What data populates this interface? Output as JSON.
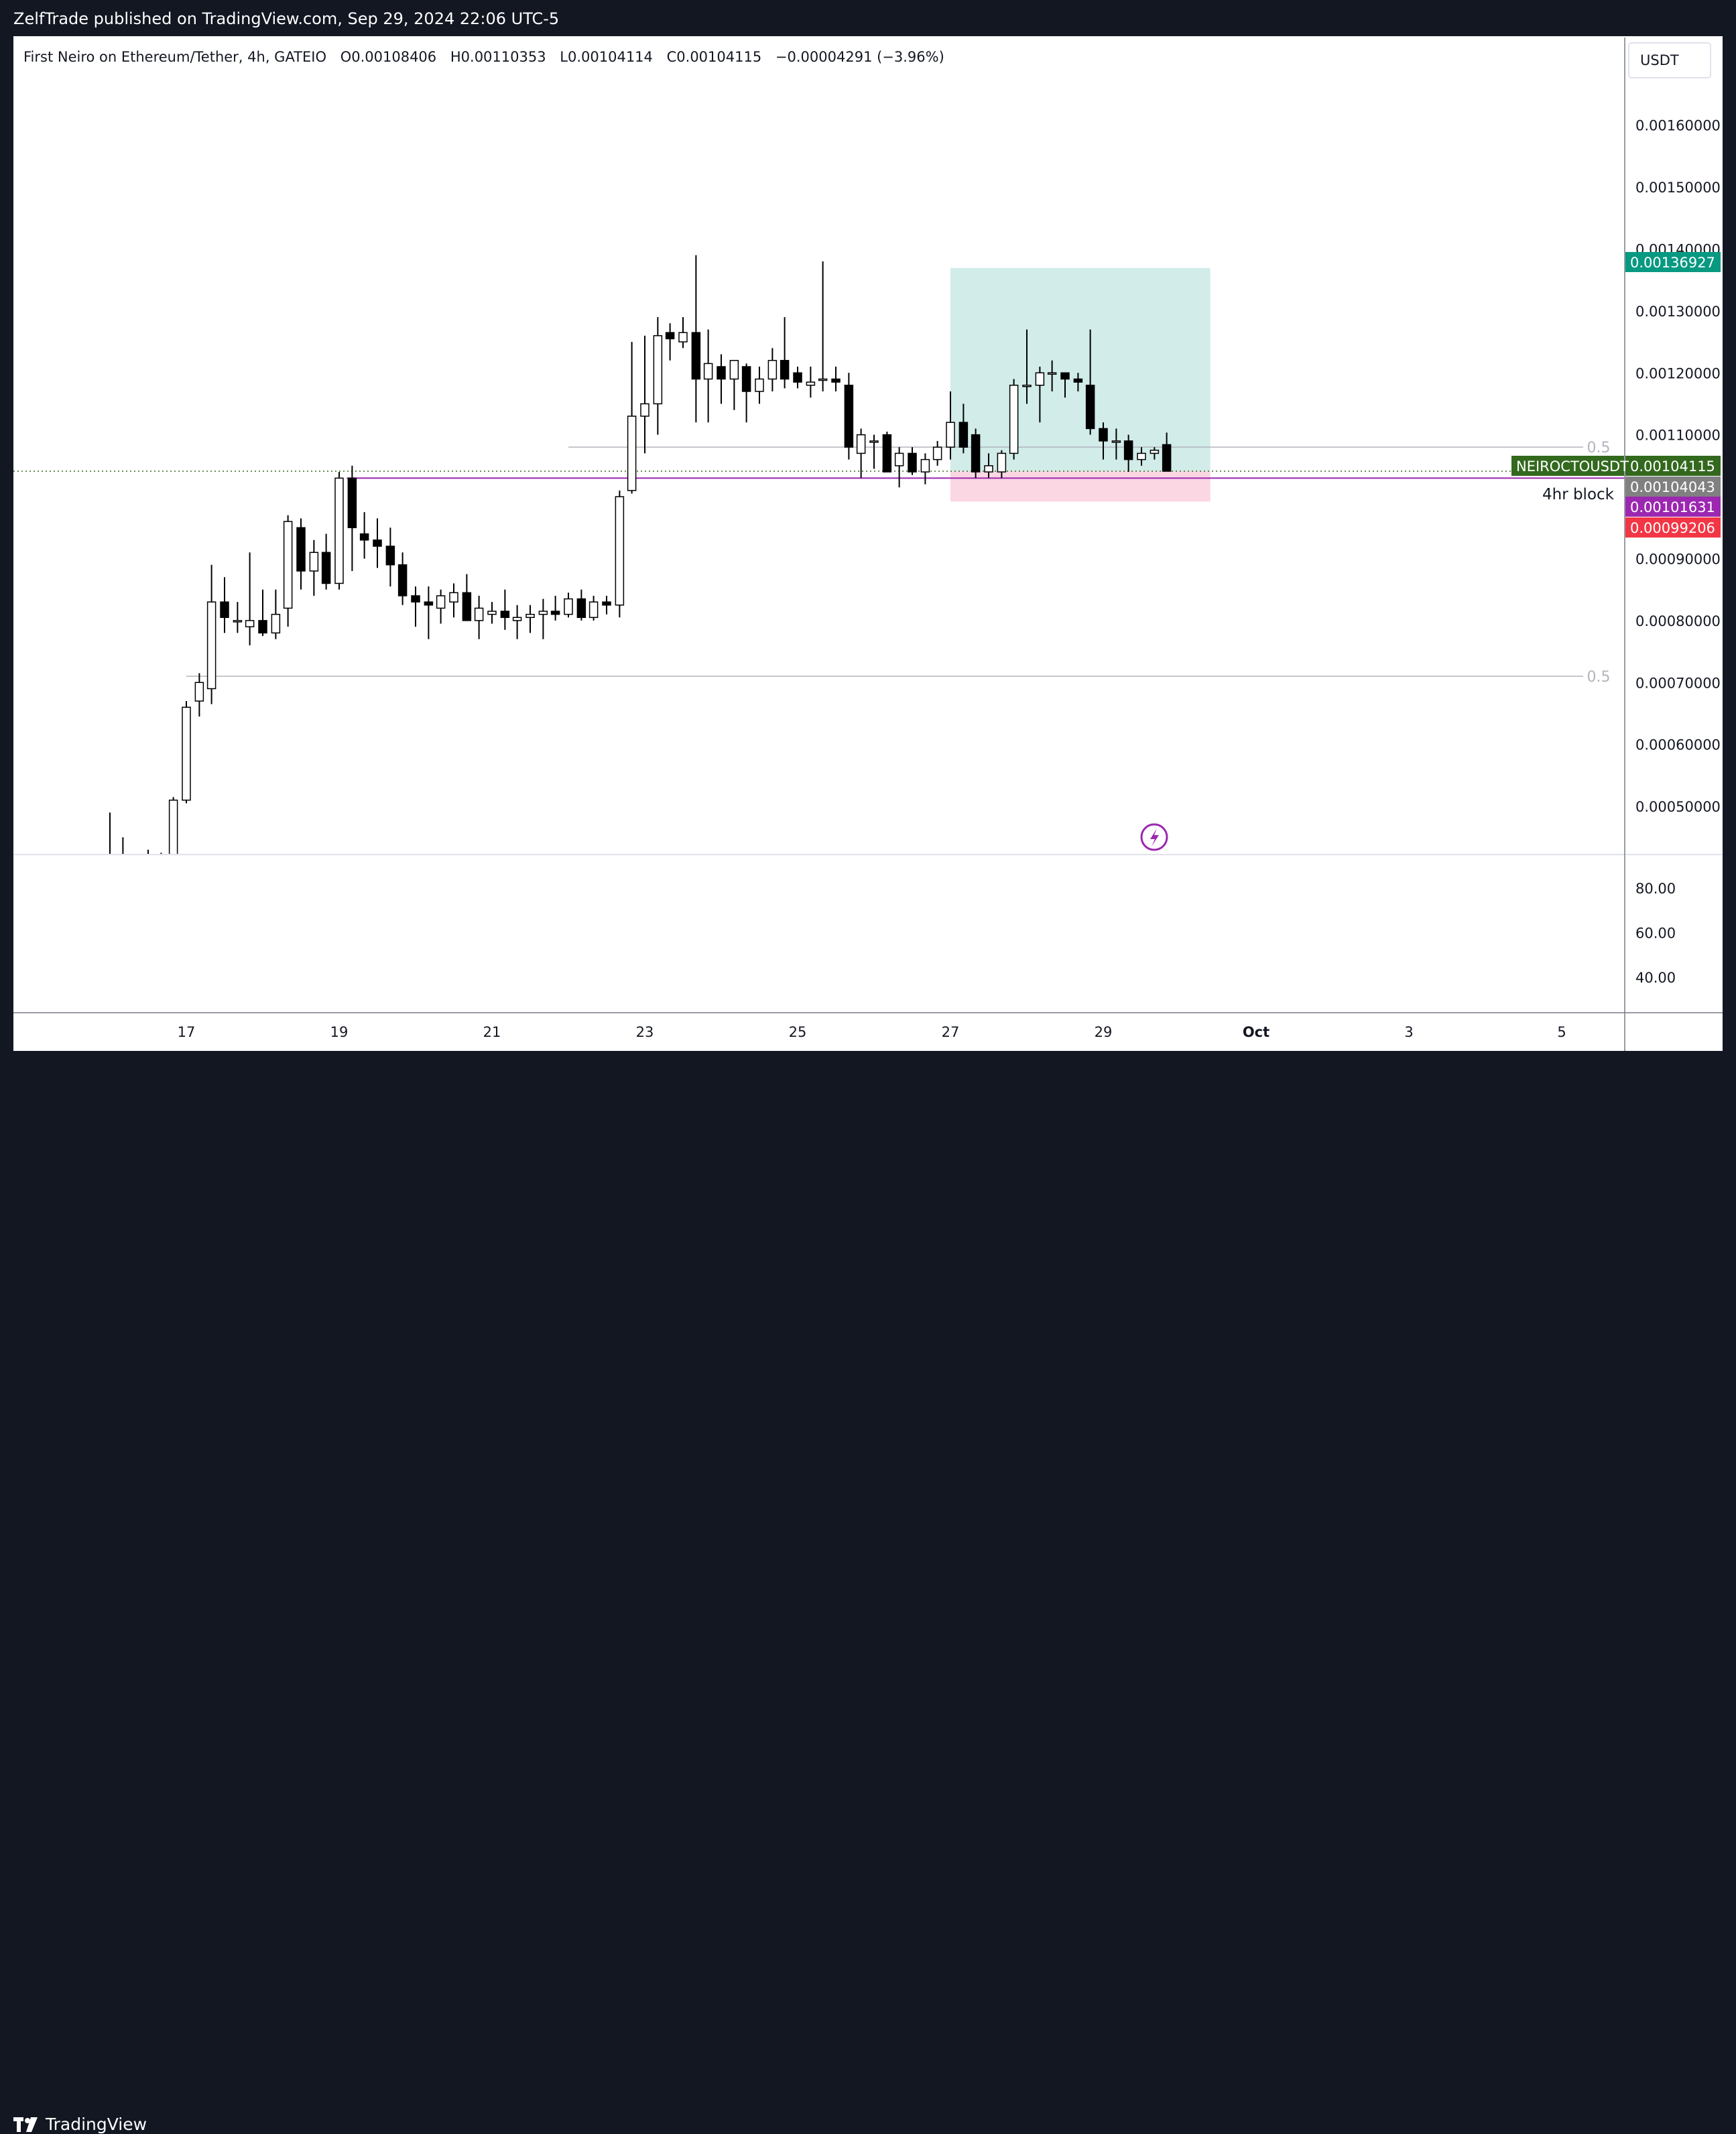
{
  "header": {
    "publish_line": "ZelfTrade published on TradingView.com, Sep 29, 2024 22:06 UTC-5"
  },
  "legend": {
    "symbol_desc": "First Neiro on Ethereum/Tether, 4h, GATEIO",
    "open_label": "O",
    "open_value": "0.00108406",
    "high_label": "H",
    "high_value": "0.00110353",
    "low_label": "L",
    "low_value": "0.00104114",
    "close_label": "C",
    "close_value": "0.00104115",
    "change": "−0.00004291 (−3.96%)"
  },
  "currency_button": "USDT",
  "footer": {
    "brand": "TradingView"
  },
  "colors": {
    "bull_body": "#ffffff",
    "bear_body": "#000000",
    "wick": "#000000",
    "target_zone": "#b2dfdb",
    "stop_zone": "#f8bbd0",
    "take_profit_tag": "#089981",
    "last_price_tag": "#33691e",
    "avwap_tag": "#808080",
    "purple_tag": "#9c27b0",
    "stop_tag": "#f23645"
  },
  "chart_data": {
    "type": "candlestick",
    "timeframe": "4h",
    "x_ticks": [
      "17",
      "19",
      "21",
      "23",
      "25",
      "27",
      "29",
      "Oct",
      "3",
      "5"
    ],
    "y_ticks": [
      "0.00050000",
      "0.00060000",
      "0.00070000",
      "0.00080000",
      "0.00090000",
      "0.00110000",
      "0.00120000",
      "0.00130000",
      "0.00140000",
      "0.00150000",
      "0.00160000"
    ],
    "y_range": [
      0.00042,
      0.00168
    ],
    "x_range_days": [
      14.3,
      35.4
    ],
    "candles": [
      {
        "t": 16.0,
        "o": 0.00042,
        "h": 0.00049,
        "l": 0.00038,
        "c": 0.0004
      },
      {
        "t": 16.17,
        "o": 0.00041,
        "h": 0.00045,
        "l": 0.00038,
        "c": 0.00042
      },
      {
        "t": 16.5,
        "o": 0.00041,
        "h": 0.00043,
        "l": 0.00039,
        "c": 0.00042
      },
      {
        "t": 16.67,
        "o": 0.00042,
        "h": 0.000425,
        "l": 0.0004,
        "c": 0.00042
      },
      {
        "t": 16.83,
        "o": 0.0004,
        "h": 0.000515,
        "l": 0.00039,
        "c": 0.00051
      },
      {
        "t": 17.0,
        "o": 0.00051,
        "h": 0.00067,
        "l": 0.000505,
        "c": 0.00066
      },
      {
        "t": 17.17,
        "o": 0.00067,
        "h": 0.000715,
        "l": 0.000645,
        "c": 0.0007
      },
      {
        "t": 17.33,
        "o": 0.00069,
        "h": 0.00089,
        "l": 0.000665,
        "c": 0.00083
      },
      {
        "t": 17.5,
        "o": 0.00083,
        "h": 0.00087,
        "l": 0.00078,
        "c": 0.000805
      },
      {
        "t": 17.67,
        "o": 0.0008,
        "h": 0.00083,
        "l": 0.00078,
        "c": 0.0008
      },
      {
        "t": 17.83,
        "o": 0.00079,
        "h": 0.00091,
        "l": 0.00076,
        "c": 0.0008
      },
      {
        "t": 18.0,
        "o": 0.0008,
        "h": 0.00085,
        "l": 0.000775,
        "c": 0.00078
      },
      {
        "t": 18.17,
        "o": 0.00078,
        "h": 0.00085,
        "l": 0.00077,
        "c": 0.00081
      },
      {
        "t": 18.33,
        "o": 0.00082,
        "h": 0.00097,
        "l": 0.00079,
        "c": 0.00096
      },
      {
        "t": 18.5,
        "o": 0.00095,
        "h": 0.000965,
        "l": 0.00085,
        "c": 0.00088
      },
      {
        "t": 18.67,
        "o": 0.00088,
        "h": 0.00093,
        "l": 0.00084,
        "c": 0.00091
      },
      {
        "t": 18.83,
        "o": 0.00091,
        "h": 0.00094,
        "l": 0.00085,
        "c": 0.00086
      },
      {
        "t": 19.0,
        "o": 0.00086,
        "h": 0.00104,
        "l": 0.00085,
        "c": 0.00103
      },
      {
        "t": 19.17,
        "o": 0.00103,
        "h": 0.00105,
        "l": 0.00088,
        "c": 0.00095
      },
      {
        "t": 19.33,
        "o": 0.00094,
        "h": 0.000975,
        "l": 0.0009,
        "c": 0.00093
      },
      {
        "t": 19.5,
        "o": 0.00093,
        "h": 0.000965,
        "l": 0.000885,
        "c": 0.00092
      },
      {
        "t": 19.67,
        "o": 0.00092,
        "h": 0.00095,
        "l": 0.000855,
        "c": 0.00089
      },
      {
        "t": 19.83,
        "o": 0.00089,
        "h": 0.00091,
        "l": 0.000825,
        "c": 0.00084
      },
      {
        "t": 20.0,
        "o": 0.00084,
        "h": 0.000855,
        "l": 0.00079,
        "c": 0.00083
      },
      {
        "t": 20.17,
        "o": 0.00083,
        "h": 0.000855,
        "l": 0.00077,
        "c": 0.000825
      },
      {
        "t": 20.33,
        "o": 0.00082,
        "h": 0.00085,
        "l": 0.000795,
        "c": 0.00084
      },
      {
        "t": 20.5,
        "o": 0.00083,
        "h": 0.00086,
        "l": 0.000805,
        "c": 0.000845
      },
      {
        "t": 20.67,
        "o": 0.000845,
        "h": 0.000875,
        "l": 0.0008,
        "c": 0.0008
      },
      {
        "t": 20.83,
        "o": 0.0008,
        "h": 0.00084,
        "l": 0.00077,
        "c": 0.00082
      },
      {
        "t": 21.0,
        "o": 0.00081,
        "h": 0.00083,
        "l": 0.000795,
        "c": 0.000815
      },
      {
        "t": 21.17,
        "o": 0.000815,
        "h": 0.00085,
        "l": 0.000785,
        "c": 0.000805
      },
      {
        "t": 21.33,
        "o": 0.0008,
        "h": 0.000825,
        "l": 0.00077,
        "c": 0.000805
      },
      {
        "t": 21.5,
        "o": 0.000805,
        "h": 0.000825,
        "l": 0.00078,
        "c": 0.00081
      },
      {
        "t": 21.67,
        "o": 0.00081,
        "h": 0.000835,
        "l": 0.00077,
        "c": 0.000815
      },
      {
        "t": 21.83,
        "o": 0.000815,
        "h": 0.00084,
        "l": 0.0008,
        "c": 0.00081
      },
      {
        "t": 22.0,
        "o": 0.00081,
        "h": 0.000845,
        "l": 0.000805,
        "c": 0.000835
      },
      {
        "t": 22.17,
        "o": 0.000835,
        "h": 0.00085,
        "l": 0.0008,
        "c": 0.000805
      },
      {
        "t": 22.33,
        "o": 0.000805,
        "h": 0.00084,
        "l": 0.0008,
        "c": 0.00083
      },
      {
        "t": 22.5,
        "o": 0.00083,
        "h": 0.00084,
        "l": 0.00081,
        "c": 0.000825
      },
      {
        "t": 22.67,
        "o": 0.000825,
        "h": 0.00101,
        "l": 0.000805,
        "c": 0.001
      },
      {
        "t": 22.83,
        "o": 0.00101,
        "h": 0.00125,
        "l": 0.001005,
        "c": 0.00113
      },
      {
        "t": 23.0,
        "o": 0.00113,
        "h": 0.00126,
        "l": 0.00107,
        "c": 0.00115
      },
      {
        "t": 23.17,
        "o": 0.00115,
        "h": 0.00129,
        "l": 0.0011,
        "c": 0.00126
      },
      {
        "t": 23.33,
        "o": 0.001265,
        "h": 0.00128,
        "l": 0.00122,
        "c": 0.001255
      },
      {
        "t": 23.5,
        "o": 0.00125,
        "h": 0.00129,
        "l": 0.00124,
        "c": 0.001265
      },
      {
        "t": 23.67,
        "o": 0.001265,
        "h": 0.00139,
        "l": 0.00112,
        "c": 0.00119
      },
      {
        "t": 23.83,
        "o": 0.00119,
        "h": 0.00127,
        "l": 0.00112,
        "c": 0.001215
      },
      {
        "t": 24.0,
        "o": 0.00121,
        "h": 0.00123,
        "l": 0.00115,
        "c": 0.00119
      },
      {
        "t": 24.17,
        "o": 0.00119,
        "h": 0.00122,
        "l": 0.00114,
        "c": 0.00122
      },
      {
        "t": 24.33,
        "o": 0.00121,
        "h": 0.001215,
        "l": 0.00112,
        "c": 0.00117
      },
      {
        "t": 24.5,
        "o": 0.00117,
        "h": 0.00121,
        "l": 0.00115,
        "c": 0.00119
      },
      {
        "t": 24.67,
        "o": 0.00119,
        "h": 0.00124,
        "l": 0.00117,
        "c": 0.00122
      },
      {
        "t": 24.83,
        "o": 0.00122,
        "h": 0.00129,
        "l": 0.001175,
        "c": 0.00119
      },
      {
        "t": 25.0,
        "o": 0.0012,
        "h": 0.00121,
        "l": 0.001175,
        "c": 0.001185
      },
      {
        "t": 25.17,
        "o": 0.00118,
        "h": 0.00121,
        "l": 0.00116,
        "c": 0.001185
      },
      {
        "t": 25.33,
        "o": 0.00119,
        "h": 0.00138,
        "l": 0.00117,
        "c": 0.00119
      },
      {
        "t": 25.5,
        "o": 0.00119,
        "h": 0.00121,
        "l": 0.00117,
        "c": 0.001185
      },
      {
        "t": 25.67,
        "o": 0.00118,
        "h": 0.0012,
        "l": 0.00106,
        "c": 0.00108
      },
      {
        "t": 25.83,
        "o": 0.00107,
        "h": 0.00111,
        "l": 0.00103,
        "c": 0.0011
      },
      {
        "t": 26.0,
        "o": 0.00109,
        "h": 0.0011,
        "l": 0.001045,
        "c": 0.00109
      },
      {
        "t": 26.17,
        "o": 0.0011,
        "h": 0.001105,
        "l": 0.00104,
        "c": 0.00104
      },
      {
        "t": 26.33,
        "o": 0.00105,
        "h": 0.00108,
        "l": 0.001015,
        "c": 0.00107
      },
      {
        "t": 26.5,
        "o": 0.00107,
        "h": 0.00108,
        "l": 0.001035,
        "c": 0.00104
      },
      {
        "t": 26.67,
        "o": 0.00104,
        "h": 0.00107,
        "l": 0.00102,
        "c": 0.00106
      },
      {
        "t": 26.83,
        "o": 0.00106,
        "h": 0.00109,
        "l": 0.00105,
        "c": 0.00108
      },
      {
        "t": 27.0,
        "o": 0.00108,
        "h": 0.00117,
        "l": 0.00106,
        "c": 0.00112
      },
      {
        "t": 27.17,
        "o": 0.00112,
        "h": 0.00115,
        "l": 0.00107,
        "c": 0.00108
      },
      {
        "t": 27.33,
        "o": 0.0011,
        "h": 0.00111,
        "l": 0.00103,
        "c": 0.00104
      },
      {
        "t": 27.5,
        "o": 0.00104,
        "h": 0.00107,
        "l": 0.00103,
        "c": 0.00105
      },
      {
        "t": 27.67,
        "o": 0.00104,
        "h": 0.001075,
        "l": 0.00103,
        "c": 0.00107
      },
      {
        "t": 27.83,
        "o": 0.00107,
        "h": 0.00119,
        "l": 0.00106,
        "c": 0.00118
      },
      {
        "t": 28.0,
        "o": 0.00118,
        "h": 0.00127,
        "l": 0.00115,
        "c": 0.00118
      },
      {
        "t": 28.17,
        "o": 0.00118,
        "h": 0.00121,
        "l": 0.00112,
        "c": 0.0012
      },
      {
        "t": 28.33,
        "o": 0.0012,
        "h": 0.00122,
        "l": 0.00117,
        "c": 0.0012
      },
      {
        "t": 28.5,
        "o": 0.0012,
        "h": 0.0012,
        "l": 0.00116,
        "c": 0.00119
      },
      {
        "t": 28.67,
        "o": 0.00119,
        "h": 0.0012,
        "l": 0.00117,
        "c": 0.001185
      },
      {
        "t": 28.83,
        "o": 0.00118,
        "h": 0.00127,
        "l": 0.0011,
        "c": 0.00111
      },
      {
        "t": 29.0,
        "o": 0.00111,
        "h": 0.00112,
        "l": 0.00106,
        "c": 0.00109
      },
      {
        "t": 29.17,
        "o": 0.00109,
        "h": 0.00111,
        "l": 0.00106,
        "c": 0.00109
      },
      {
        "t": 29.33,
        "o": 0.00109,
        "h": 0.0011,
        "l": 0.00104,
        "c": 0.00106
      },
      {
        "t": 29.5,
        "o": 0.00106,
        "h": 0.00108,
        "l": 0.00105,
        "c": 0.00107
      },
      {
        "t": 29.67,
        "o": 0.00107,
        "h": 0.00108,
        "l": 0.00106,
        "c": 0.001075
      },
      {
        "t": 29.83,
        "o": 0.00108406,
        "h": 0.00110353,
        "l": 0.00104114,
        "c": 0.00104115
      }
    ],
    "horizontal_lines": [
      {
        "label": "0.5",
        "price": 0.00108,
        "from_day": 22.0,
        "color": "#b2b5be"
      },
      {
        "label": "0.5",
        "price": 0.00071,
        "from_day": 17.0,
        "color": "#b2b5be"
      },
      {
        "label": "",
        "price": 0.00103,
        "from_day": 19.1,
        "color": "#9c27b0"
      }
    ],
    "long_position": {
      "from_day": 27.0,
      "to_day": 30.4,
      "take_profit": 0.00136927,
      "entry": 0.00104115,
      "stop": 0.00099206
    },
    "zone_label": "4hr block",
    "price_tags": [
      {
        "value": "0.00136927",
        "kind": "take_profit",
        "price": 0.00136927
      },
      {
        "value": "0.00104115",
        "kind": "last_price",
        "price": 0.00104115,
        "symbol": "NEIROCTOUSDT"
      },
      {
        "value": "0.00104043",
        "kind": "avwap",
        "price": 0.00103
      },
      {
        "value": "0.00101631",
        "kind": "purple",
        "price": 0.001
      },
      {
        "value": "0.00099206",
        "kind": "stop",
        "price": 0.00099206
      }
    ],
    "oscillator": {
      "y_ticks": [
        "80.00",
        "60.00",
        "40.00"
      ],
      "y_range": [
        29.0,
        98.0
      ]
    }
  }
}
